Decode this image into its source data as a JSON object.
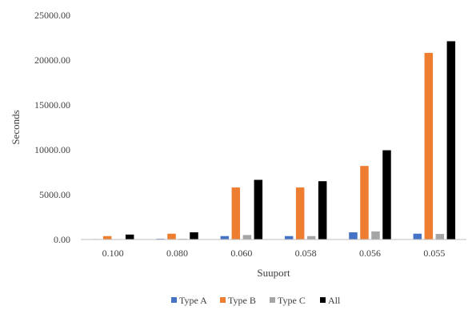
{
  "chart_data": {
    "type": "bar",
    "title": "",
    "xlabel": "Suuport",
    "ylabel": "Seconds",
    "categories": [
      "0.100",
      "0.080",
      "0.060",
      "0.058",
      "0.056",
      "0.055"
    ],
    "ylim": [
      0,
      25000
    ],
    "yticks": [
      "0.00",
      "5000.00",
      "10000.00",
      "15000.00",
      "20000.00",
      "25000.00"
    ],
    "grid": false,
    "legend_position": "bottom",
    "series": [
      {
        "name": "Type A",
        "color": "#4472C4",
        "values": [
          50,
          80,
          380,
          380,
          800,
          650
        ]
      },
      {
        "name": "Type B",
        "color": "#ED7D31",
        "values": [
          380,
          650,
          5800,
          5800,
          8200,
          20800
        ]
      },
      {
        "name": "Type C",
        "color": "#A5A5A5",
        "values": [
          50,
          80,
          500,
          380,
          900,
          620
        ]
      },
      {
        "name": "All",
        "color": "#000000",
        "values": [
          550,
          800,
          6650,
          6500,
          9950,
          22100
        ]
      }
    ]
  }
}
